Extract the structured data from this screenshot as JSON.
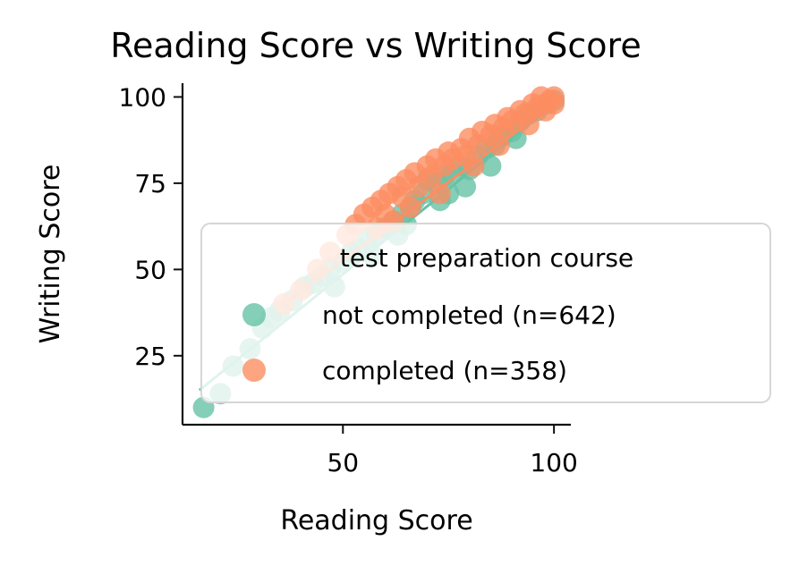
{
  "chart_data": {
    "type": "scatter",
    "title": "Reading Score vs Writing Score",
    "xlabel": "Reading Score",
    "ylabel": "Writing Score",
    "xlim": [
      12,
      104
    ],
    "ylim": [
      5,
      104
    ],
    "xticks": [
      "50",
      "100"
    ],
    "yticks": [
      "25",
      "50",
      "75",
      "100"
    ],
    "grid": false,
    "legend": {
      "title": "test preparation course",
      "placement": "lower-right",
      "entries": [
        "not completed (n=642)",
        "completed (n=358)"
      ]
    },
    "series": [
      {
        "name": "not completed (n=642)",
        "color": "#66c2a5",
        "points": [
          [
            17,
            10
          ],
          [
            21,
            14
          ],
          [
            24,
            22
          ],
          [
            28,
            27
          ],
          [
            31,
            33
          ],
          [
            33,
            36
          ],
          [
            35,
            38
          ],
          [
            38,
            41
          ],
          [
            41,
            45
          ],
          [
            43,
            46
          ],
          [
            45,
            48
          ],
          [
            47,
            50
          ],
          [
            50,
            52
          ],
          [
            52,
            55
          ],
          [
            54,
            56
          ],
          [
            56,
            59
          ],
          [
            58,
            60
          ],
          [
            60,
            62
          ],
          [
            62,
            64
          ],
          [
            64,
            66
          ],
          [
            65,
            63
          ],
          [
            67,
            70
          ],
          [
            69,
            72
          ],
          [
            70,
            76
          ],
          [
            72,
            75
          ],
          [
            74,
            77
          ],
          [
            76,
            78
          ],
          [
            78,
            80
          ],
          [
            80,
            79
          ],
          [
            82,
            83
          ],
          [
            84,
            85
          ],
          [
            86,
            86
          ],
          [
            88,
            89
          ],
          [
            90,
            90
          ],
          [
            92,
            93
          ],
          [
            94,
            95
          ],
          [
            96,
            96
          ],
          [
            98,
            98
          ],
          [
            100,
            99
          ],
          [
            66,
            68
          ],
          [
            73,
            70
          ],
          [
            79,
            74
          ],
          [
            85,
            80
          ],
          [
            87,
            88
          ],
          [
            91,
            88
          ],
          [
            75,
            72
          ],
          [
            63,
            60
          ],
          [
            57,
            54
          ],
          [
            48,
            45
          ]
        ],
        "fit": [
          [
            16,
            15
          ],
          [
            100,
            98
          ]
        ]
      },
      {
        "name": "completed (n=358)",
        "color": "#fc8d62",
        "points": [
          [
            36,
            40
          ],
          [
            40,
            44
          ],
          [
            44,
            50
          ],
          [
            47,
            55
          ],
          [
            51,
            60
          ],
          [
            53,
            63
          ],
          [
            55,
            66
          ],
          [
            57,
            68
          ],
          [
            59,
            70
          ],
          [
            60,
            66
          ],
          [
            61,
            72
          ],
          [
            63,
            74
          ],
          [
            64,
            71
          ],
          [
            65,
            76
          ],
          [
            67,
            78
          ],
          [
            68,
            74
          ],
          [
            70,
            80
          ],
          [
            71,
            77
          ],
          [
            72,
            82
          ],
          [
            74,
            80
          ],
          [
            75,
            84
          ],
          [
            76,
            82
          ],
          [
            78,
            85
          ],
          [
            79,
            83
          ],
          [
            80,
            88
          ],
          [
            82,
            86
          ],
          [
            83,
            90
          ],
          [
            85,
            89
          ],
          [
            86,
            92
          ],
          [
            88,
            91
          ],
          [
            89,
            94
          ],
          [
            90,
            93
          ],
          [
            92,
            96
          ],
          [
            93,
            95
          ],
          [
            95,
            98
          ],
          [
            96,
            97
          ],
          [
            97,
            100
          ],
          [
            99,
            99
          ],
          [
            100,
            100
          ],
          [
            100,
            98
          ],
          [
            98,
            96
          ],
          [
            94,
            92
          ],
          [
            87,
            86
          ],
          [
            81,
            80
          ],
          [
            73,
            72
          ],
          [
            66,
            68
          ],
          [
            62,
            64
          ],
          [
            58,
            62
          ]
        ],
        "fit": [
          [
            36,
            40
          ],
          [
            100,
            98
          ]
        ]
      }
    ]
  }
}
